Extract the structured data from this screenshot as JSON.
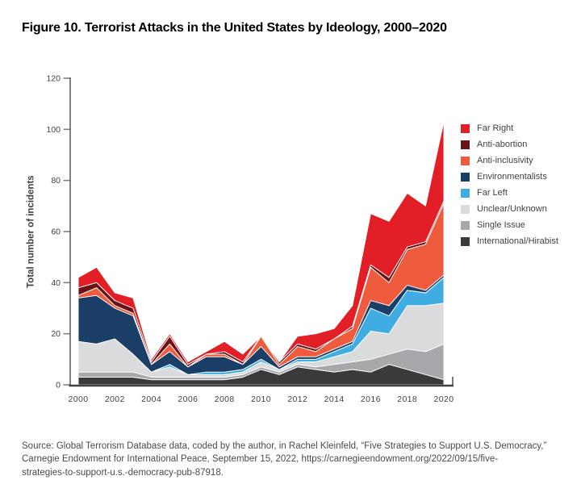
{
  "page": {
    "title": "Figure 10. Terrorist Attacks in the United States by Ideology, 2000–2020"
  },
  "y_axis": {
    "label": "Total number of incidents",
    "ticks": [
      0,
      20,
      40,
      60,
      80,
      100,
      120
    ],
    "max": 120
  },
  "x_axis": {
    "ticks": [
      2000,
      2002,
      2004,
      2006,
      2008,
      2010,
      2012,
      2014,
      2016,
      2018,
      2020
    ]
  },
  "legend": {
    "items": [
      {
        "label": "Far Right",
        "color": "#e21f26"
      },
      {
        "label": "Anti-abortion",
        "color": "#6b1216"
      },
      {
        "label": "Anti-inclusivity",
        "color": "#ef5b3d"
      },
      {
        "label": "Environmentalists",
        "color": "#1a3e66"
      },
      {
        "label": "Far Left",
        "color": "#3face2"
      },
      {
        "label": "Unclear/Unknown",
        "color": "#d9dbdc"
      },
      {
        "label": "Single Issue",
        "color": "#a6a8ab"
      },
      {
        "label": "International/Hirabist",
        "color": "#3a3a3c"
      }
    ]
  },
  "chart_data": {
    "type": "area",
    "stacked": true,
    "title": "Figure 10. Terrorist Attacks in the United States by Ideology, 2000–2020",
    "xlabel": "",
    "ylabel": "Total number of incidents",
    "ylim": [
      0,
      120
    ],
    "grid": false,
    "legend_position": "right",
    "x": [
      2000,
      2001,
      2002,
      2003,
      2004,
      2005,
      2006,
      2007,
      2008,
      2009,
      2010,
      2011,
      2012,
      2013,
      2014,
      2015,
      2016,
      2017,
      2018,
      2019,
      2020
    ],
    "series": [
      {
        "name": "International/Hirabist",
        "color": "#3a3a3c",
        "values": [
          3,
          3,
          3,
          3,
          2,
          2,
          2,
          2,
          2,
          3,
          6,
          4,
          7,
          6,
          5,
          6,
          5,
          8,
          6,
          4,
          2
        ]
      },
      {
        "name": "Single Issue",
        "color": "#a6a8ab",
        "values": [
          2,
          2,
          2,
          2,
          1,
          1,
          1,
          1,
          1,
          1,
          1,
          1,
          1,
          1,
          3,
          3,
          5,
          4,
          8,
          9,
          14
        ]
      },
      {
        "name": "Unclear/Unknown",
        "color": "#d9dbdc",
        "values": [
          12,
          11,
          13,
          7,
          2,
          4,
          1,
          1,
          1,
          1,
          2,
          1,
          1,
          2,
          3,
          4,
          11,
          8,
          17,
          18,
          16
        ]
      },
      {
        "name": "Far Left",
        "color": "#3face2",
        "values": [
          0,
          0,
          0,
          0,
          0,
          1,
          0,
          1,
          1,
          1,
          1,
          0,
          1,
          1,
          2,
          3,
          9,
          7,
          6,
          5,
          10
        ]
      },
      {
        "name": "Environmentalists",
        "color": "#1a3e66",
        "values": [
          17,
          19,
          12,
          15,
          3,
          5,
          3,
          6,
          6,
          2,
          5,
          1,
          1,
          1,
          1,
          1,
          3,
          4,
          2,
          1,
          1
        ]
      },
      {
        "name": "Anti-inclusivity",
        "color": "#ef5b3d",
        "values": [
          1,
          3,
          1,
          1,
          0,
          3,
          0,
          1,
          1,
          0,
          4,
          1,
          4,
          2,
          4,
          5,
          13,
          9,
          14,
          18,
          28
        ]
      },
      {
        "name": "Anti-abortion",
        "color": "#6b1216",
        "values": [
          3,
          2,
          2,
          2,
          1,
          3,
          1,
          0,
          1,
          1,
          0,
          1,
          1,
          1,
          0,
          1,
          1,
          2,
          1,
          1,
          1
        ]
      },
      {
        "name": "Far Right",
        "color": "#e21f26",
        "values": [
          4,
          6,
          3,
          4,
          1,
          1,
          1,
          1,
          4,
          3,
          0,
          0,
          3,
          6,
          4,
          8,
          20,
          22,
          21,
          14,
          31
        ]
      }
    ]
  },
  "source": {
    "lines": [
      "Source: Global Terrorism Database data, coded by the author, in Rachel Kleinfeld, “Five Strategies to Support U.S. Democracy,”",
      "Carnegie Endowment for International Peace, September 15, 2022, https://carnegieendowment.org/2022/09/15/five-",
      "strategies-to-support-u.s.-democracy-pub-87918."
    ]
  }
}
